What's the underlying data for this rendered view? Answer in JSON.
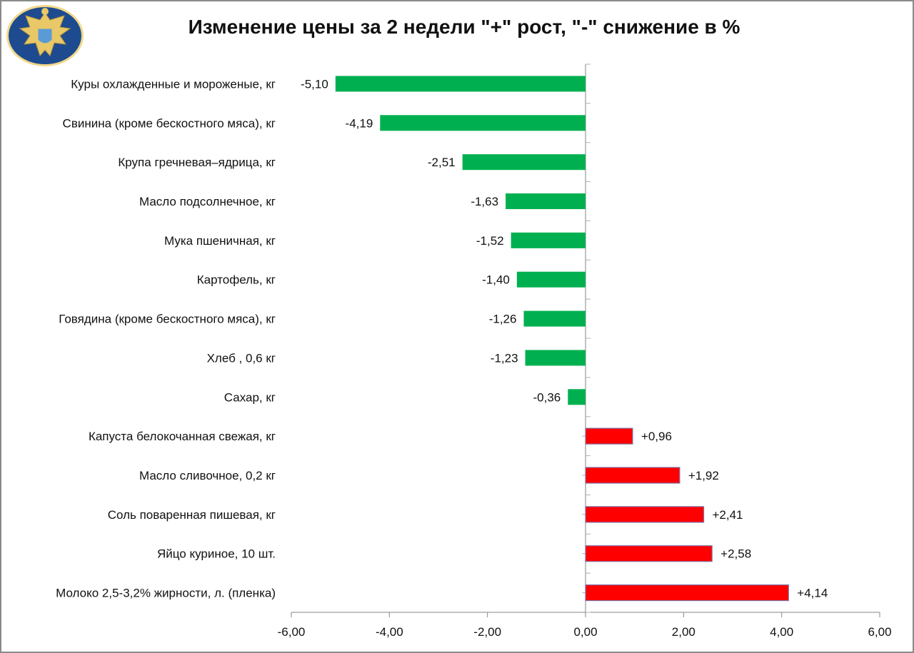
{
  "chart_data": {
    "type": "bar",
    "orientation": "horizontal",
    "title": "Изменение цены за 2 недели \"+\" рост, \"-\" снижение в %",
    "categories": [
      "Куры охлажденные и мороженые, кг",
      "Свинина (кроме бескостного мяса), кг",
      "Крупа гречневая–ядрица,  кг",
      "Масло подсолнечное, кг",
      "Мука пшеничная, кг",
      "Картофель, кг",
      "Говядина (кроме бескостного мяса), кг",
      "Хлеб , 0,6 кг",
      "Сахар, кг",
      "Капуста белокочанная свежая, кг",
      "Масло сливочное, 0,2 кг",
      "Соль поваренная пишевая,  кг",
      "Яйцо куриное, 10 шт.",
      "Молоко 2,5-3,2% жирности, л. (пленка)"
    ],
    "values": [
      -5.1,
      -4.19,
      -2.51,
      -1.63,
      -1.52,
      -1.4,
      -1.26,
      -1.23,
      -0.36,
      0.96,
      1.92,
      2.41,
      2.58,
      4.14
    ],
    "data_labels": [
      "-5,10",
      "-4,19",
      "-2,51",
      "-1,63",
      "-1,52",
      "-1,40",
      "-1,26",
      "-1,23",
      "-0,36",
      "+0,96",
      "+1,92",
      "+2,41",
      "+2,58",
      "+4,14"
    ],
    "xlim": [
      -6,
      6
    ],
    "xticks": [
      -6,
      -4,
      -2,
      0,
      2,
      4,
      6
    ],
    "xtick_labels": [
      "-6,00",
      "-4,00",
      "-2,00",
      "0,00",
      "2,00",
      "4,00",
      "6,00"
    ],
    "grid": false,
    "legend": "none",
    "colors": {
      "negative": "#00b050",
      "positive": "#ff0000",
      "positive_border": "#7f6fa0"
    }
  },
  "logo": {
    "name": "emblem-logo"
  }
}
